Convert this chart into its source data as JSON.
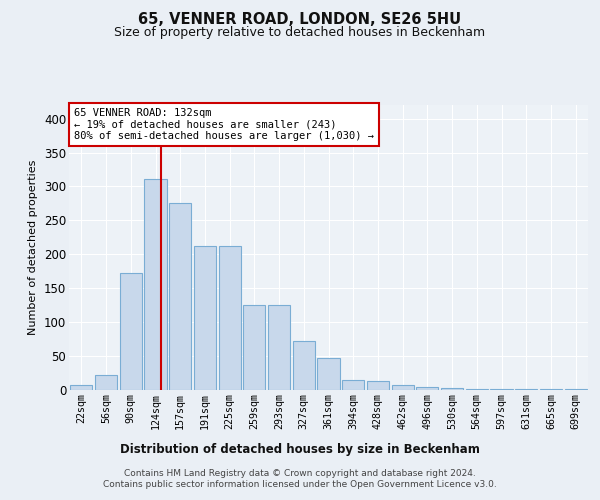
{
  "title1": "65, VENNER ROAD, LONDON, SE26 5HU",
  "title2": "Size of property relative to detached houses in Beckenham",
  "xlabel": "Distribution of detached houses by size in Beckenham",
  "ylabel": "Number of detached properties",
  "bar_labels": [
    "22sqm",
    "56sqm",
    "90sqm",
    "124sqm",
    "157sqm",
    "191sqm",
    "225sqm",
    "259sqm",
    "293sqm",
    "327sqm",
    "361sqm",
    "394sqm",
    "428sqm",
    "462sqm",
    "496sqm",
    "530sqm",
    "564sqm",
    "597sqm",
    "631sqm",
    "665sqm",
    "699sqm"
  ],
  "bar_heights": [
    7,
    22,
    172,
    311,
    275,
    212,
    212,
    126,
    126,
    72,
    47,
    15,
    13,
    8,
    4,
    3,
    2,
    2,
    1,
    2,
    1
  ],
  "bar_color": "#c8d8eb",
  "bar_edge_color": "#7aadd4",
  "vline_color": "#cc0000",
  "vline_pos": 3.24,
  "annotation_text": "65 VENNER ROAD: 132sqm\n← 19% of detached houses are smaller (243)\n80% of semi-detached houses are larger (1,030) →",
  "annotation_box_color": "#ffffff",
  "annotation_edge_color": "#cc0000",
  "ylim": [
    0,
    420
  ],
  "yticks": [
    0,
    50,
    100,
    150,
    200,
    250,
    300,
    350,
    400
  ],
  "footer1": "Contains HM Land Registry data © Crown copyright and database right 2024.",
  "footer2": "Contains public sector information licensed under the Open Government Licence v3.0.",
  "bg_color": "#eaeff5",
  "plot_bg_color": "#edf2f7",
  "grid_color": "#ffffff"
}
